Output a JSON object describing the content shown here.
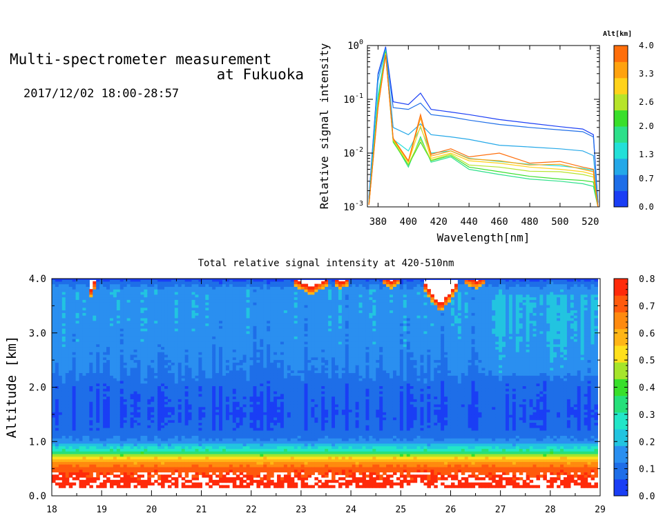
{
  "header": {
    "title_line1": "Multi-spectrometer measurement",
    "title_line2": "at Fukuoka",
    "datetime": "2017/12/02 18:00-28:57"
  },
  "colors": {
    "alt_scale": [
      "#1a3ef5",
      "#1e6ee8",
      "#24a8e8",
      "#23e0d8",
      "#2de08a",
      "#39df2b",
      "#b6e42a",
      "#ffd21a",
      "#ffa20e",
      "#ff6e0a"
    ],
    "intensity_scale": [
      "#1a3ef5",
      "#1e6ee8",
      "#2a8ff0",
      "#22c4e0",
      "#22e6c8",
      "#26e07a",
      "#39df2b",
      "#a6e52b",
      "#ffe01c",
      "#ffb515",
      "#ff8a0f",
      "#ff5a0c",
      "#ff2a0a"
    ]
  },
  "chart_data": [
    {
      "type": "line",
      "title": "",
      "xlabel": "Wavelength[nm]",
      "ylabel": "Relative signal intensity",
      "xlim": [
        373,
        526
      ],
      "ylim": [
        0.001,
        1
      ],
      "y_scale": "log",
      "x_ticks": [
        380,
        400,
        420,
        440,
        460,
        480,
        500,
        520
      ],
      "y_ticks": [
        {
          "value": 0.001,
          "base": "10",
          "exp": "-3"
        },
        {
          "value": 0.01,
          "base": "10",
          "exp": "-2"
        },
        {
          "value": 0.1,
          "base": "10",
          "exp": "-1"
        },
        {
          "value": 1,
          "base": "10",
          "exp": "0"
        }
      ],
      "x": [
        374,
        380,
        385,
        390,
        400,
        408,
        415,
        428,
        440,
        460,
        480,
        500,
        515,
        522,
        525
      ],
      "series": [
        {
          "color": "#1a3ef5",
          "values": [
            0.0015,
            0.3,
            0.95,
            0.09,
            0.08,
            0.13,
            0.065,
            0.058,
            0.052,
            0.042,
            0.036,
            0.031,
            0.028,
            0.022,
            0.0012
          ]
        },
        {
          "color": "#1e6ee8",
          "values": [
            0.0014,
            0.28,
            0.9,
            0.07,
            0.065,
            0.085,
            0.052,
            0.047,
            0.041,
            0.034,
            0.03,
            0.027,
            0.025,
            0.02,
            0.0012
          ]
        },
        {
          "color": "#24a8e8",
          "values": [
            0.0013,
            0.22,
            0.85,
            0.03,
            0.022,
            0.035,
            0.022,
            0.02,
            0.018,
            0.014,
            0.013,
            0.012,
            0.011,
            0.009,
            0.0011
          ]
        },
        {
          "color": "#23e0d8",
          "values": [
            0.0012,
            0.12,
            0.8,
            0.018,
            0.011,
            0.03,
            0.01,
            0.011,
            0.008,
            0.007,
            0.0062,
            0.0058,
            0.0052,
            0.0048,
            0.001
          ]
        },
        {
          "color": "#2de08a",
          "values": [
            0.0012,
            0.1,
            0.78,
            0.017,
            0.0055,
            0.02,
            0.0068,
            0.0085,
            0.005,
            0.004,
            0.0033,
            0.003,
            0.0027,
            0.0024,
            0.001
          ]
        },
        {
          "color": "#39df2b",
          "values": [
            0.0011,
            0.09,
            0.75,
            0.016,
            0.006,
            0.016,
            0.0072,
            0.009,
            0.0055,
            0.0045,
            0.0037,
            0.0033,
            0.0031,
            0.0029,
            0.001
          ]
        },
        {
          "color": "#b6e42a",
          "values": [
            0.0011,
            0.08,
            0.72,
            0.017,
            0.0062,
            0.018,
            0.0074,
            0.0095,
            0.006,
            0.0055,
            0.0046,
            0.0045,
            0.004,
            0.0036,
            0.001
          ]
        },
        {
          "color": "#ffd21a",
          "values": [
            0.0011,
            0.08,
            0.7,
            0.018,
            0.0068,
            0.032,
            0.008,
            0.01,
            0.0072,
            0.0065,
            0.0055,
            0.005,
            0.0045,
            0.004,
            0.001
          ]
        },
        {
          "color": "#ffa20e",
          "values": [
            0.0011,
            0.07,
            0.68,
            0.018,
            0.007,
            0.045,
            0.0088,
            0.011,
            0.0078,
            0.0072,
            0.006,
            0.0062,
            0.005,
            0.0045,
            0.001
          ]
        },
        {
          "color": "#ff6e0a",
          "values": [
            0.0011,
            0.07,
            0.66,
            0.019,
            0.0072,
            0.052,
            0.0095,
            0.012,
            0.0085,
            0.01,
            0.0065,
            0.007,
            0.0055,
            0.005,
            0.001
          ]
        }
      ],
      "colorbar": {
        "label": "Alt[km]",
        "range": [
          0,
          4
        ],
        "ticks": [
          "0.0",
          "0.7",
          "1.3",
          "2.0",
          "2.6",
          "3.3",
          "4.0"
        ]
      }
    },
    {
      "type": "heatmap",
      "title": "Total relative signal intensity at 420-510nm",
      "xlabel": "",
      "ylabel": "Altitude [km]",
      "xlim": [
        18,
        29
      ],
      "ylim": [
        0,
        4
      ],
      "data_xmax": 28.95,
      "data_ymin": 0.15,
      "x_ticks": [
        "18",
        "19",
        "20",
        "21",
        "22",
        "23",
        "24",
        "25",
        "26",
        "27",
        "28",
        "29"
      ],
      "y_ticks": [
        "0.0",
        "1.0",
        "2.0",
        "3.0",
        "4.0"
      ],
      "profile": {
        "altitude": [
          0.15,
          0.5,
          0.7,
          0.8,
          0.9,
          1.0,
          1.2,
          1.5,
          2.0,
          2.3,
          2.8,
          3.3,
          3.8,
          4.0
        ],
        "value": [
          0.78,
          0.72,
          0.55,
          0.35,
          0.24,
          0.14,
          0.08,
          0.06,
          0.08,
          0.12,
          0.15,
          0.16,
          0.16,
          0.05
        ]
      },
      "clouds": [
        {
          "time": 18.8,
          "alt_bottom": 3.7,
          "width_h": 0.15
        },
        {
          "time": 23.2,
          "alt_bottom": 3.78,
          "width_h": 0.7
        },
        {
          "time": 23.8,
          "alt_bottom": 3.88,
          "width_h": 0.3
        },
        {
          "time": 24.8,
          "alt_bottom": 3.9,
          "width_h": 0.3
        },
        {
          "time": 25.8,
          "alt_bottom": 3.45,
          "width_h": 0.7
        },
        {
          "time": 26.5,
          "alt_bottom": 3.9,
          "width_h": 0.4
        }
      ],
      "colorbar": {
        "range": [
          0,
          0.8
        ],
        "ticks": [
          "0.0",
          "0.1",
          "0.2",
          "0.3",
          "0.4",
          "0.5",
          "0.6",
          "0.7",
          "0.8"
        ]
      }
    }
  ]
}
